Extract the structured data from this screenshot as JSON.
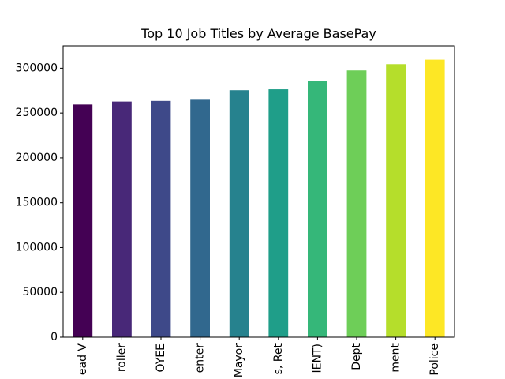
{
  "chart_data": {
    "type": "bar",
    "title": "Top 10 Job Titles by Average BasePay",
    "xlabel": "",
    "ylabel": "",
    "categories": [
      "ead V",
      "roller",
      "OYEE",
      "enter",
      "Mayor",
      "s, Ret",
      "IENT)",
      "Dept",
      "ment",
      "Police"
    ],
    "values": [
      259500,
      262800,
      263500,
      264800,
      275500,
      276500,
      285500,
      297500,
      304500,
      309500
    ],
    "ylim": [
      0,
      325000
    ],
    "yticks": [
      0,
      50000,
      100000,
      150000,
      200000,
      250000,
      300000
    ],
    "ytick_labels": [
      "0",
      "50000",
      "100000",
      "150000",
      "200000",
      "250000",
      "300000"
    ],
    "colors": [
      "#440154",
      "#482878",
      "#3e4989",
      "#31688e",
      "#26828e",
      "#1f9e89",
      "#35b779",
      "#6ece58",
      "#b5de2b",
      "#fde725"
    ],
    "grid": false,
    "legend": "none"
  }
}
